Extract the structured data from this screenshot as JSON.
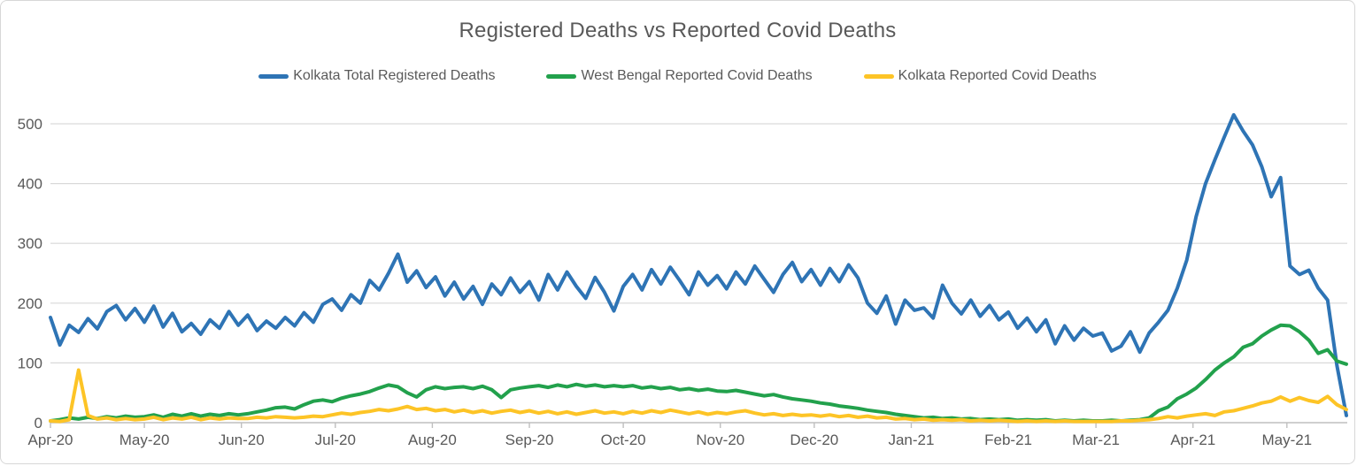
{
  "chart_data": {
    "type": "line",
    "title": "Registered Deaths vs Reported Covid Deaths",
    "legend_position": "top",
    "grid": true,
    "ylim": [
      0,
      500
    ],
    "y_ticks": [
      0,
      100,
      200,
      300,
      400,
      500
    ],
    "x_tick_labels": [
      "Apr-20",
      "May-20",
      "Jun-20",
      "Jul-20",
      "Aug-20",
      "Sep-20",
      "Oct-20",
      "Nov-20",
      "Dec-20",
      "Jan-21",
      "Feb-21",
      "Mar-21",
      "Apr-21",
      "May-21"
    ],
    "x_tick_days": [
      0,
      30,
      61,
      91,
      122,
      153,
      183,
      214,
      244,
      275,
      306,
      334,
      365,
      395
    ],
    "x_total_days": 414,
    "sample_step_days": 3,
    "colors": {
      "axis": "#BFBFBF",
      "gridline": "#D9D9D9",
      "text": "#595959"
    },
    "series": [
      {
        "name": "Kolkata Total Registered Deaths",
        "color": "#2E74B5",
        "values": [
          176,
          130,
          163,
          151,
          174,
          157,
          186,
          196,
          172,
          191,
          168,
          195,
          160,
          183,
          152,
          166,
          148,
          172,
          158,
          186,
          163,
          180,
          154,
          170,
          158,
          176,
          162,
          184,
          168,
          198,
          207,
          188,
          214,
          200,
          238,
          222,
          250,
          282,
          235,
          254,
          226,
          244,
          212,
          235,
          207,
          228,
          198,
          232,
          214,
          242,
          218,
          236,
          205,
          248,
          222,
          252,
          228,
          208,
          243,
          218,
          187,
          228,
          248,
          222,
          256,
          232,
          260,
          238,
          214,
          252,
          230,
          246,
          224,
          252,
          232,
          262,
          240,
          218,
          248,
          268,
          236,
          256,
          230,
          258,
          236,
          264,
          242,
          200,
          183,
          212,
          165,
          205,
          188,
          192,
          175,
          230,
          200,
          182,
          205,
          178,
          196,
          172,
          185,
          158,
          175,
          152,
          172,
          132,
          162,
          138,
          158,
          145,
          150,
          120,
          128,
          152,
          118,
          150,
          168,
          188,
          225,
          272,
          345,
          400,
          440,
          478,
          515,
          488,
          465,
          428,
          378,
          410,
          262,
          248,
          255,
          225,
          205,
          95,
          12
        ]
      },
      {
        "name": "West Bengal Reported Covid Deaths",
        "color": "#22A14C",
        "values": [
          3,
          5,
          8,
          6,
          9,
          7,
          10,
          8,
          11,
          9,
          10,
          13,
          9,
          14,
          11,
          15,
          11,
          14,
          12,
          15,
          13,
          15,
          18,
          21,
          25,
          26,
          23,
          30,
          36,
          38,
          35,
          41,
          45,
          48,
          52,
          58,
          63,
          60,
          50,
          43,
          55,
          60,
          57,
          59,
          60,
          57,
          61,
          55,
          42,
          55,
          58,
          60,
          62,
          59,
          63,
          60,
          64,
          61,
          63,
          60,
          62,
          60,
          62,
          58,
          60,
          57,
          59,
          55,
          57,
          54,
          56,
          53,
          52,
          54,
          51,
          48,
          45,
          47,
          43,
          40,
          38,
          36,
          33,
          31,
          28,
          26,
          24,
          21,
          19,
          17,
          14,
          12,
          10,
          8,
          9,
          7,
          8,
          6,
          7,
          5,
          6,
          5,
          6,
          4,
          5,
          4,
          5,
          3,
          4,
          3,
          4,
          3,
          3,
          4,
          3,
          4,
          5,
          8,
          20,
          26,
          40,
          48,
          58,
          72,
          88,
          100,
          110,
          126,
          132,
          145,
          155,
          163,
          162,
          152,
          138,
          116,
          122,
          103,
          98
        ]
      },
      {
        "name": "Kolkata Reported Covid Deaths",
        "color": "#FDC426",
        "values": [
          3,
          2,
          5,
          88,
          12,
          6,
          8,
          5,
          7,
          5,
          6,
          9,
          5,
          8,
          6,
          9,
          5,
          8,
          6,
          8,
          7,
          7,
          9,
          8,
          10,
          9,
          8,
          9,
          11,
          10,
          13,
          16,
          14,
          17,
          19,
          22,
          20,
          23,
          27,
          22,
          24,
          20,
          22,
          18,
          21,
          17,
          20,
          16,
          19,
          21,
          17,
          20,
          16,
          19,
          15,
          18,
          14,
          17,
          20,
          16,
          18,
          15,
          19,
          16,
          20,
          17,
          21,
          18,
          15,
          18,
          14,
          17,
          15,
          18,
          20,
          16,
          13,
          15,
          12,
          14,
          12,
          13,
          11,
          13,
          10,
          12,
          9,
          11,
          8,
          9,
          6,
          7,
          5,
          6,
          4,
          5,
          4,
          5,
          3,
          4,
          3,
          4,
          3,
          2,
          3,
          2,
          3,
          2,
          3,
          2,
          2,
          2,
          2,
          2,
          3,
          3,
          4,
          5,
          7,
          10,
          8,
          11,
          13,
          15,
          12,
          18,
          20,
          24,
          28,
          33,
          36,
          43,
          36,
          42,
          37,
          34,
          44,
          30,
          22
        ]
      }
    ]
  }
}
